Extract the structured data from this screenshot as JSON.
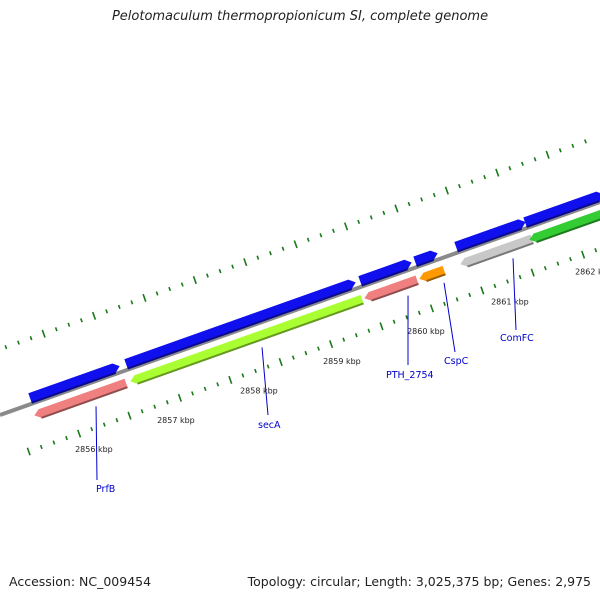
{
  "title": "Pelotomaculum thermopropionicum SI, complete genome",
  "footer": {
    "accession": "Accession: NC_009454",
    "summary": "Topology: circular; Length: 3,025,375 bp; Genes: 2,975"
  },
  "genome_map": {
    "strands": [
      "forward",
      "reverse"
    ],
    "kbp_ticks": [
      "2856 kbp",
      "2857 kbp",
      "2858 kbp",
      "2859 kbp",
      "2860 kbp",
      "2861 kbp",
      "2862 kbp"
    ],
    "genes": [
      {
        "name": "PrfB",
        "forward_color": "#1010ee",
        "feature_color": "#f08080"
      },
      {
        "name": "secA",
        "forward_color": "#1010ee",
        "feature_color": "#aaff33"
      },
      {
        "name": "PTH_2754",
        "forward_color": "#1010ee",
        "feature_color": "#f08080"
      },
      {
        "name": "CspC",
        "forward_color": "#1010ee",
        "feature_color": "#ff9900"
      },
      {
        "name": "ComFC",
        "forward_color": "#1010ee",
        "feature_color": "#c8c8c8"
      },
      {
        "name": "",
        "forward_color": "#1010ee",
        "feature_color": "#33cc33"
      }
    ],
    "colors": {
      "backbone": "#8a8a8a",
      "tick": "#1a7a1a",
      "label_line": "#0000cc"
    }
  }
}
